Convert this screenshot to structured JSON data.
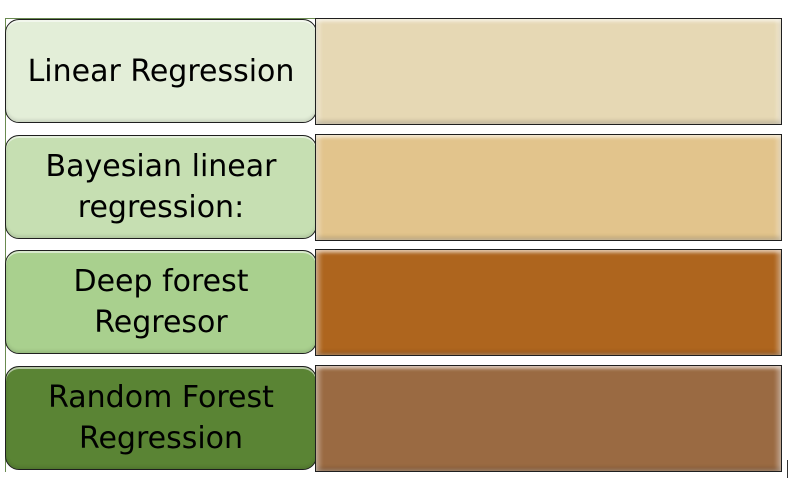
{
  "rows": [
    {
      "label": "Linear Regression",
      "label_color": "#e3eed8",
      "bar_color": "#e6d8b4"
    },
    {
      "label": "Bayesian linear regression:",
      "label_color": "#c6dfb2",
      "bar_color": "#e2c48c"
    },
    {
      "label": "Deep forest Regresor",
      "label_color": "#a9d08e",
      "bar_color": "#ae651e"
    },
    {
      "label": "Random Forest Regression",
      "label_color": "#5a8434",
      "bar_color": "#9a6a42"
    }
  ]
}
